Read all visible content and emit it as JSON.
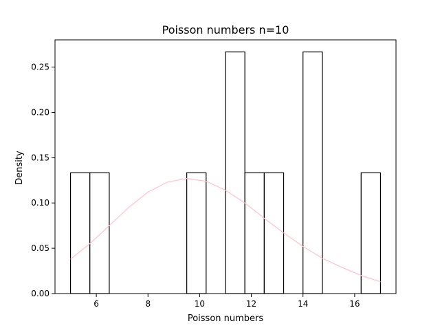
{
  "chart_data": {
    "type": "histogram",
    "title": "Poisson numbers n=10",
    "xlabel": "Poisson numbers",
    "ylabel": "Density",
    "xlim": [
      4.4,
      17.6
    ],
    "ylim": [
      0,
      0.28
    ],
    "x_ticks": [
      6,
      8,
      10,
      12,
      14,
      16
    ],
    "y_ticks": [
      0.0,
      0.05,
      0.1,
      0.15,
      0.2,
      0.25
    ],
    "bins": [
      {
        "x0": 5.0,
        "x1": 5.75,
        "density": 0.1333
      },
      {
        "x0": 5.75,
        "x1": 6.5,
        "density": 0.1333
      },
      {
        "x0": 9.5,
        "x1": 10.25,
        "density": 0.1333
      },
      {
        "x0": 11.0,
        "x1": 11.75,
        "density": 0.2667
      },
      {
        "x0": 11.75,
        "x1": 12.5,
        "density": 0.1333
      },
      {
        "x0": 12.5,
        "x1": 13.25,
        "density": 0.1333
      },
      {
        "x0": 14.0,
        "x1": 14.75,
        "density": 0.2667
      },
      {
        "x0": 16.25,
        "x1": 17.0,
        "density": 0.1333
      }
    ],
    "curve": {
      "color": "#ffc0cb",
      "points": [
        [
          5.0,
          0.038
        ],
        [
          5.75,
          0.055
        ],
        [
          6.5,
          0.075
        ],
        [
          7.25,
          0.095
        ],
        [
          8.0,
          0.112
        ],
        [
          8.75,
          0.123
        ],
        [
          9.5,
          0.127
        ],
        [
          10.25,
          0.124
        ],
        [
          11.0,
          0.114
        ],
        [
          11.75,
          0.1
        ],
        [
          12.5,
          0.083
        ],
        [
          13.25,
          0.067
        ],
        [
          14.0,
          0.052
        ],
        [
          14.75,
          0.039
        ],
        [
          15.5,
          0.029
        ],
        [
          16.25,
          0.02
        ],
        [
          17.0,
          0.013
        ]
      ]
    },
    "bar_fill": "#ffffff",
    "bar_edge": "#000000",
    "grid": false
  }
}
